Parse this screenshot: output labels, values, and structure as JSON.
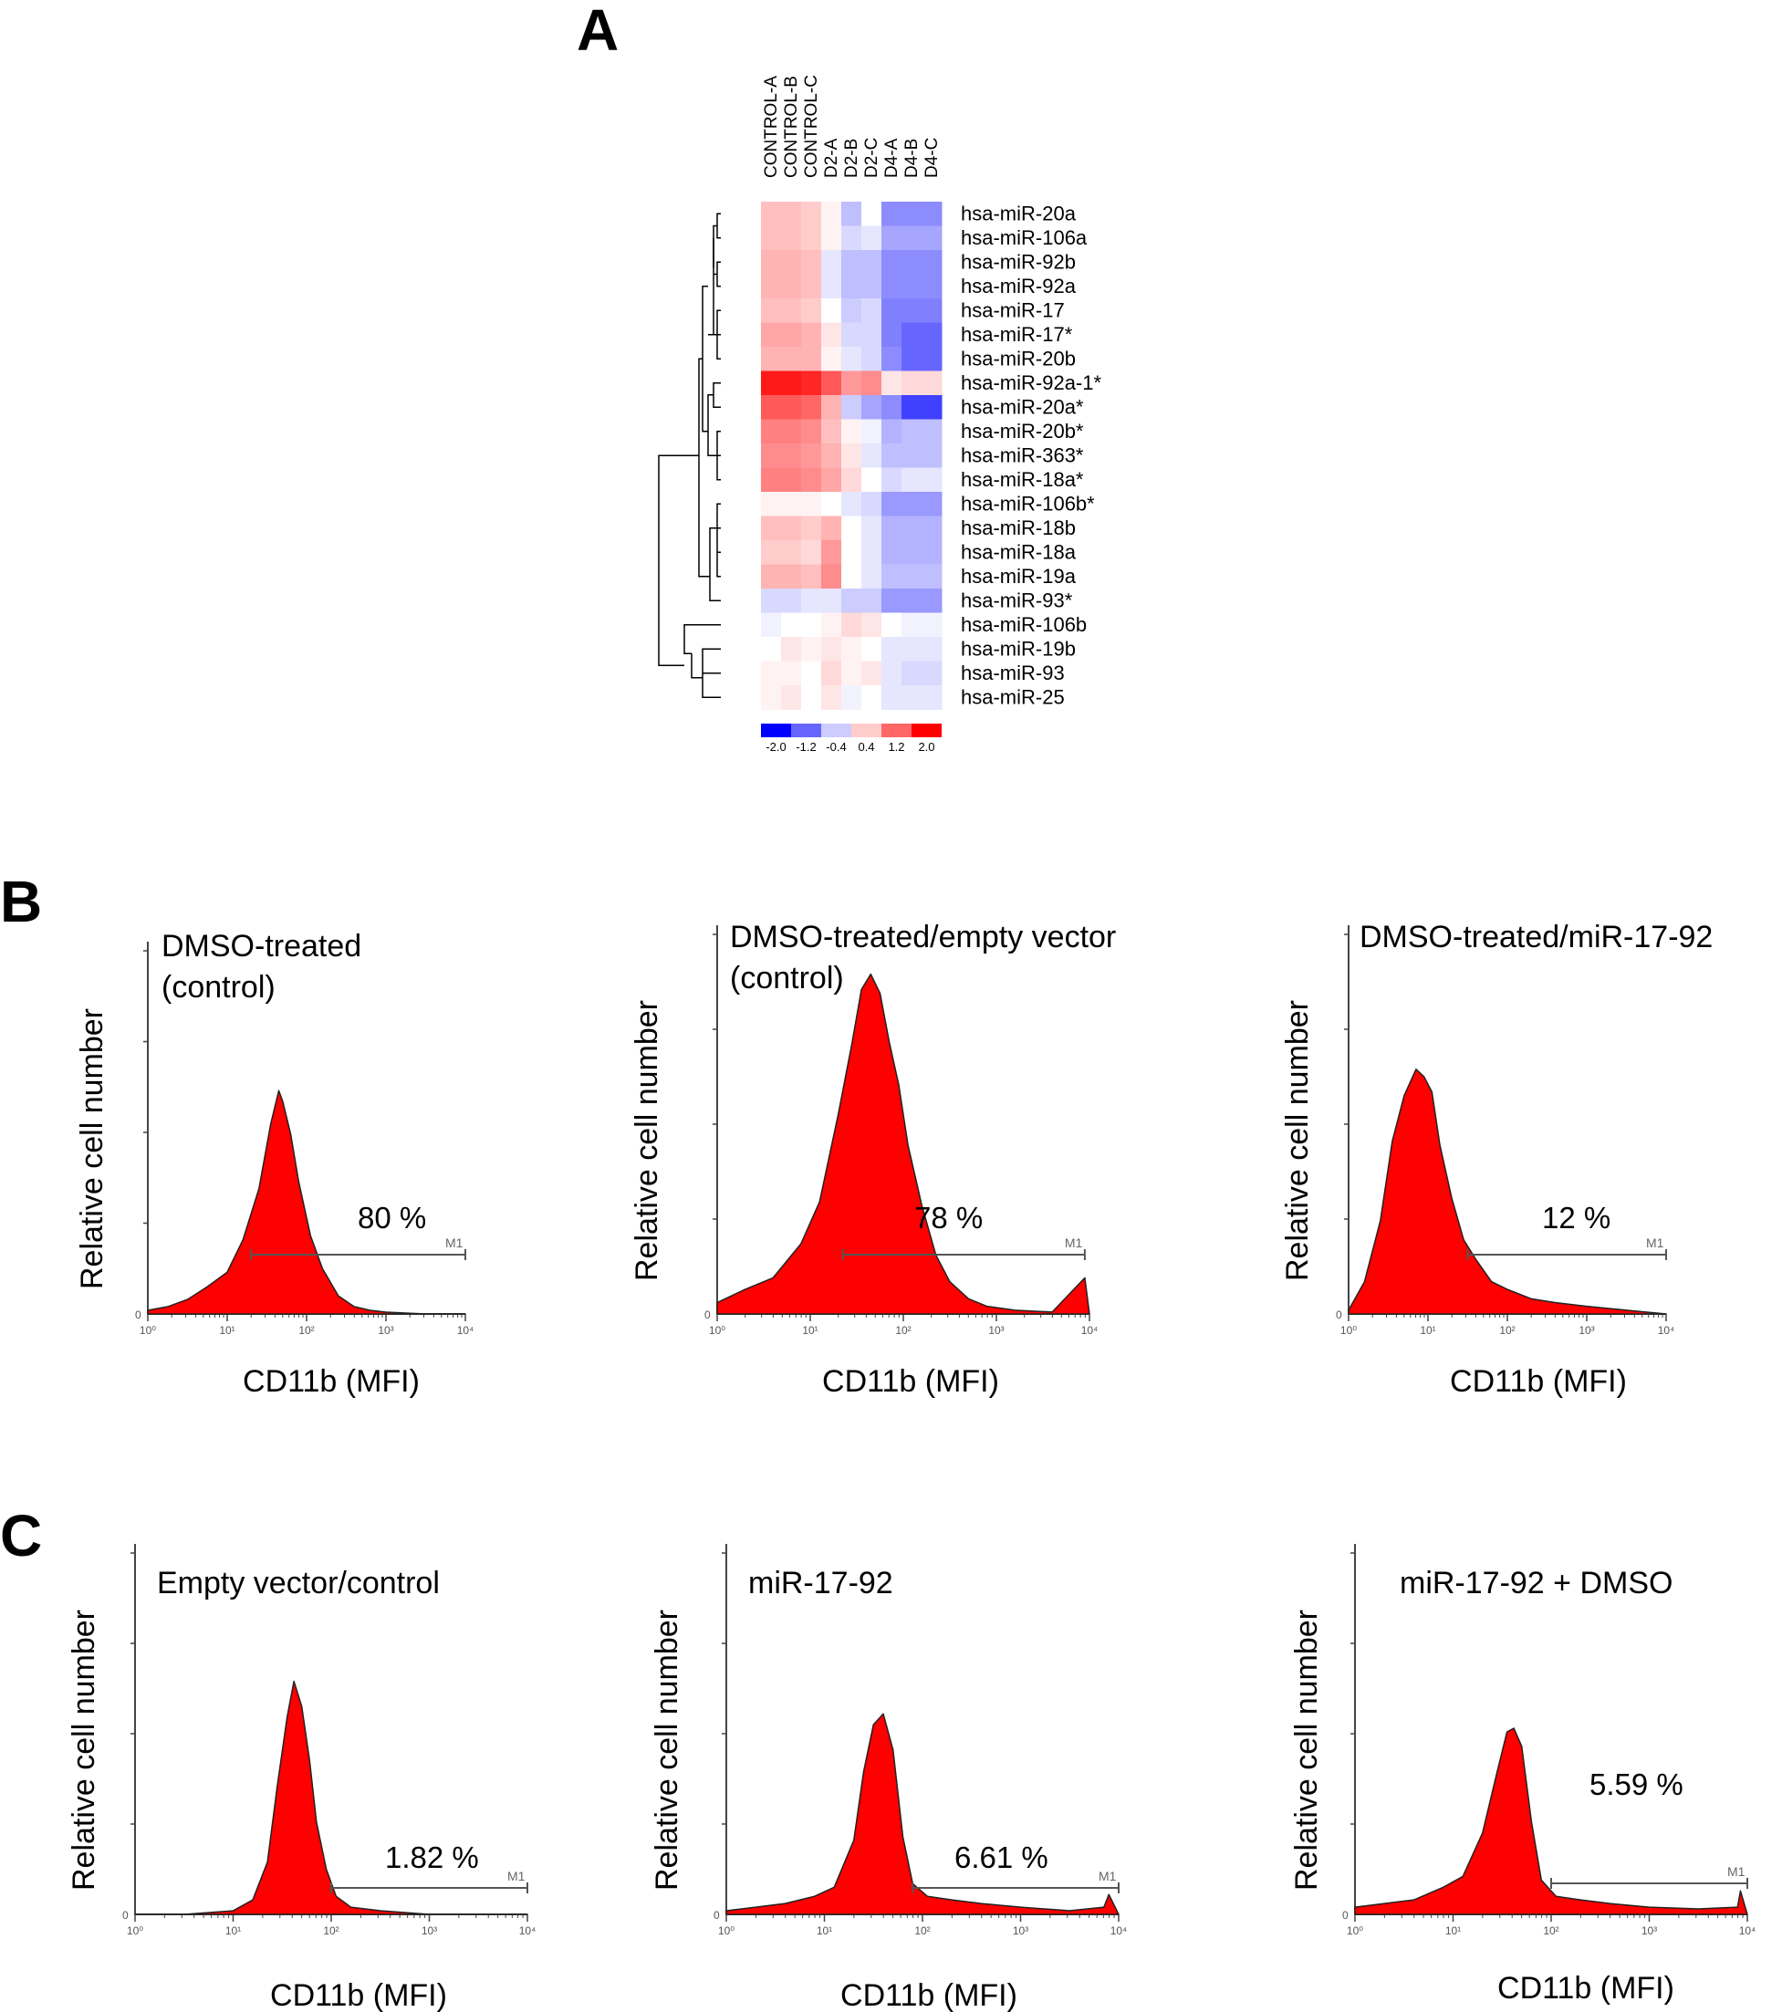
{
  "panel_labels": {
    "a": "A",
    "b": "B",
    "c": "C"
  },
  "histogram_axes": {
    "xlabel": "CD11b (MFI)",
    "ylabel": "Relative cell number",
    "y_zero_label": "0",
    "x_tick_labels": [
      "10⁰",
      "10¹",
      "10²",
      "10³",
      "10⁴"
    ],
    "gate_label": "M1"
  },
  "colors": {
    "fill": "#ff0000",
    "outline": "#222222",
    "axis": "#444444"
  },
  "chart_data": [
    {
      "type": "heatmap",
      "panel": "A",
      "columns": [
        "CONTROL-A",
        "CONTROL-B",
        "CONTROL-C",
        "D2-A",
        "D2-B",
        "D2-C",
        "D4-A",
        "D4-B",
        "D4-C"
      ],
      "rows": [
        "hsa-miR-20a",
        "hsa-miR-106a",
        "hsa-miR-92b",
        "hsa-miR-92a",
        "hsa-miR-17",
        "hsa-miR-17*",
        "hsa-miR-20b",
        "hsa-miR-92a-1*",
        "hsa-miR-20a*",
        "hsa-miR-20b*",
        "hsa-miR-363*",
        "hsa-miR-18a*",
        "hsa-miR-106b*",
        "hsa-miR-18b",
        "hsa-miR-18a",
        "hsa-miR-19a",
        "hsa-miR-93*",
        "hsa-miR-106b",
        "hsa-miR-19b",
        "hsa-miR-93",
        "hsa-miR-25"
      ],
      "values": [
        [
          0.5,
          0.5,
          0.4,
          0.1,
          -0.5,
          0.0,
          -0.9,
          -0.9,
          -0.9
        ],
        [
          0.5,
          0.5,
          0.4,
          0.1,
          -0.3,
          -0.2,
          -0.7,
          -0.7,
          -0.7
        ],
        [
          0.6,
          0.6,
          0.5,
          -0.2,
          -0.5,
          -0.5,
          -0.9,
          -0.9,
          -0.9
        ],
        [
          0.6,
          0.6,
          0.5,
          -0.2,
          -0.5,
          -0.5,
          -0.9,
          -0.9,
          -0.9
        ],
        [
          0.5,
          0.5,
          0.4,
          0.0,
          -0.4,
          -0.3,
          -1.0,
          -1.0,
          -1.0
        ],
        [
          0.7,
          0.7,
          0.6,
          0.2,
          -0.3,
          -0.3,
          -1.0,
          -1.2,
          -1.2
        ],
        [
          0.6,
          0.6,
          0.6,
          0.1,
          -0.2,
          -0.3,
          -0.9,
          -1.2,
          -1.2
        ],
        [
          1.8,
          1.8,
          1.7,
          1.3,
          0.8,
          0.9,
          0.2,
          0.3,
          0.3
        ],
        [
          1.3,
          1.3,
          1.2,
          0.6,
          -0.4,
          -0.7,
          -0.9,
          -1.5,
          -1.5
        ],
        [
          1.0,
          1.0,
          0.9,
          0.5,
          0.1,
          -0.1,
          -0.6,
          -0.5,
          -0.5
        ],
        [
          0.9,
          0.9,
          0.8,
          0.6,
          0.2,
          -0.2,
          -0.5,
          -0.5,
          -0.5
        ],
        [
          1.0,
          1.0,
          0.9,
          0.7,
          0.3,
          0.0,
          -0.3,
          -0.2,
          -0.2
        ],
        [
          0.1,
          0.1,
          0.1,
          0.0,
          -0.2,
          -0.3,
          -0.8,
          -0.8,
          -0.8
        ],
        [
          0.5,
          0.5,
          0.4,
          0.6,
          0.0,
          -0.2,
          -0.6,
          -0.6,
          -0.6
        ],
        [
          0.4,
          0.4,
          0.3,
          0.8,
          0.0,
          -0.2,
          -0.6,
          -0.6,
          -0.6
        ],
        [
          0.6,
          0.6,
          0.5,
          0.9,
          0.0,
          -0.2,
          -0.5,
          -0.5,
          -0.5
        ],
        [
          -0.3,
          -0.3,
          -0.2,
          -0.2,
          -0.4,
          -0.4,
          -0.8,
          -0.8,
          -0.8
        ],
        [
          -0.1,
          0.0,
          0.0,
          0.1,
          0.3,
          0.2,
          0.0,
          -0.1,
          -0.1
        ],
        [
          0.0,
          0.2,
          0.1,
          0.2,
          0.1,
          0.0,
          -0.2,
          -0.2,
          -0.2
        ],
        [
          0.1,
          0.1,
          0.0,
          0.3,
          0.1,
          0.2,
          -0.2,
          -0.3,
          -0.3
        ],
        [
          0.1,
          0.2,
          0.0,
          0.2,
          -0.1,
          0.0,
          -0.2,
          -0.2,
          -0.2
        ]
      ],
      "colorbar_ticks": [
        "-2.0",
        "-1.2",
        "-0.4",
        "0.4",
        "1.2",
        "2.0"
      ],
      "range": [
        -2.0,
        2.0
      ]
    },
    {
      "type": "area",
      "panel": "B",
      "title_lines": [
        "DMSO-treated",
        "(control)"
      ],
      "percent_label": "80 %",
      "gate": [
        1.3,
        4.0
      ],
      "xlim": [
        0,
        4
      ],
      "ylim": [
        0,
        1
      ],
      "x": [
        0.0,
        0.25,
        0.5,
        0.75,
        1.0,
        1.2,
        1.4,
        1.55,
        1.65,
        1.7,
        1.8,
        1.9,
        2.05,
        2.2,
        2.4,
        2.6,
        2.8,
        3.0,
        3.5,
        4.0
      ],
      "y": [
        0.01,
        0.02,
        0.04,
        0.07,
        0.12,
        0.2,
        0.35,
        0.52,
        0.62,
        0.58,
        0.5,
        0.36,
        0.22,
        0.12,
        0.05,
        0.02,
        0.01,
        0.005,
        0.0,
        0.0
      ]
    },
    {
      "type": "area",
      "panel": "B",
      "title_lines": [
        "DMSO-treated/empty vector",
        "(control)"
      ],
      "percent_label": "78 %",
      "gate": [
        1.35,
        3.95
      ],
      "xlim": [
        0,
        4
      ],
      "ylim": [
        0,
        1
      ],
      "x": [
        0.0,
        0.3,
        0.6,
        0.9,
        1.1,
        1.3,
        1.45,
        1.55,
        1.65,
        1.75,
        1.85,
        1.95,
        2.05,
        2.2,
        2.35,
        2.5,
        2.7,
        2.9,
        3.2,
        3.6,
        3.95,
        4.0
      ],
      "y": [
        0.03,
        0.06,
        0.1,
        0.18,
        0.3,
        0.52,
        0.72,
        0.85,
        0.9,
        0.84,
        0.72,
        0.6,
        0.45,
        0.28,
        0.16,
        0.08,
        0.04,
        0.02,
        0.01,
        0.005,
        0.1,
        0.0
      ]
    },
    {
      "type": "area",
      "panel": "B",
      "title_lines": [
        "DMSO-treated/miR-17-92"
      ],
      "percent_label": "12 %",
      "gate": [
        1.5,
        4.0
      ],
      "xlim": [
        0,
        4
      ],
      "ylim": [
        0,
        1
      ],
      "x": [
        0.0,
        0.2,
        0.4,
        0.55,
        0.7,
        0.85,
        0.95,
        1.05,
        1.15,
        1.3,
        1.45,
        1.6,
        1.8,
        2.0,
        2.3,
        2.6,
        3.0,
        3.5,
        4.0
      ],
      "y": [
        0.01,
        0.08,
        0.25,
        0.45,
        0.58,
        0.64,
        0.63,
        0.58,
        0.45,
        0.3,
        0.2,
        0.14,
        0.09,
        0.06,
        0.04,
        0.03,
        0.02,
        0.01,
        0.0
      ]
    },
    {
      "type": "area",
      "panel": "C",
      "title_lines": [
        "Empty vector/control"
      ],
      "percent_label": "1.82 %",
      "gate": [
        2.0,
        4.0
      ],
      "xlim": [
        0,
        4
      ],
      "ylim": [
        0,
        1
      ],
      "x": [
        0.0,
        0.5,
        1.0,
        1.2,
        1.35,
        1.45,
        1.55,
        1.62,
        1.7,
        1.78,
        1.85,
        1.95,
        2.05,
        2.2,
        2.5,
        3.0,
        4.0
      ],
      "y": [
        0.0,
        0.0,
        0.01,
        0.04,
        0.15,
        0.35,
        0.55,
        0.64,
        0.58,
        0.42,
        0.26,
        0.12,
        0.05,
        0.02,
        0.01,
        0.0,
        0.0
      ]
    },
    {
      "type": "area",
      "panel": "C",
      "title_lines": [
        "miR-17-92"
      ],
      "percent_label": "6.61 %",
      "gate": [
        1.9,
        4.0
      ],
      "xlim": [
        0,
        4
      ],
      "ylim": [
        0,
        1
      ],
      "x": [
        0.0,
        0.3,
        0.6,
        0.9,
        1.1,
        1.3,
        1.4,
        1.5,
        1.6,
        1.7,
        1.8,
        1.9,
        2.05,
        2.3,
        2.6,
        3.0,
        3.5,
        3.85,
        3.9,
        4.0
      ],
      "y": [
        0.01,
        0.02,
        0.03,
        0.05,
        0.08,
        0.2,
        0.4,
        0.52,
        0.56,
        0.45,
        0.22,
        0.08,
        0.05,
        0.04,
        0.03,
        0.02,
        0.01,
        0.02,
        0.06,
        0.0
      ]
    },
    {
      "type": "area",
      "panel": "C",
      "title_lines": [
        "miR-17-92 + DMSO"
      ],
      "percent_label": "5.59 %",
      "gate": [
        2.0,
        4.0
      ],
      "xlim": [
        0,
        4
      ],
      "ylim": [
        0,
        1
      ],
      "x": [
        0.0,
        0.3,
        0.6,
        0.9,
        1.1,
        1.3,
        1.45,
        1.55,
        1.62,
        1.7,
        1.8,
        1.9,
        2.05,
        2.3,
        2.6,
        3.0,
        3.5,
        3.9,
        3.93,
        4.0
      ],
      "y": [
        0.02,
        0.03,
        0.04,
        0.07,
        0.11,
        0.22,
        0.4,
        0.5,
        0.52,
        0.46,
        0.26,
        0.09,
        0.05,
        0.04,
        0.03,
        0.02,
        0.015,
        0.02,
        0.07,
        0.0
      ]
    }
  ]
}
